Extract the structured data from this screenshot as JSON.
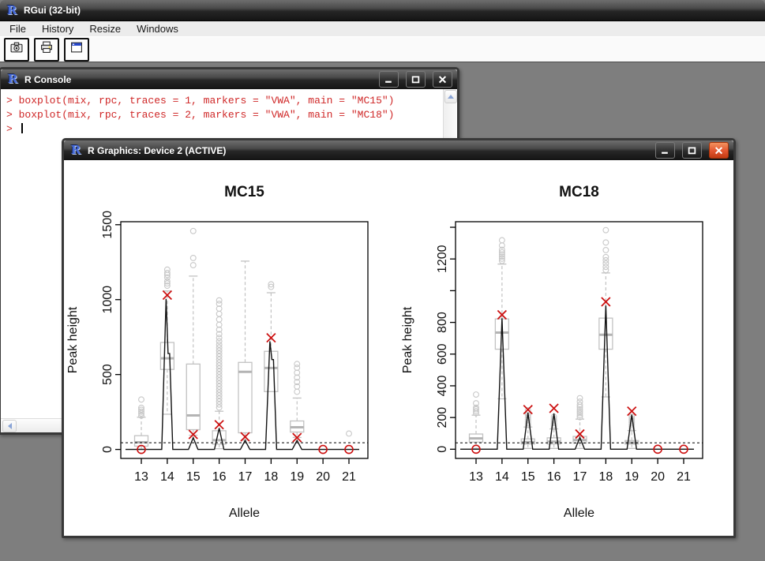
{
  "app": {
    "title": "RGui (32-bit)",
    "menu": [
      "File",
      "History",
      "Resize",
      "Windows"
    ],
    "toolbar_icons": [
      "camera-icon",
      "printer-icon",
      "window-icon"
    ]
  },
  "console": {
    "title": "R Console",
    "lines": [
      "> boxplot(mix, rpc, traces = 1, markers = \"VWA\", main = \"MC15\")",
      "> boxplot(mix, rpc, traces = 2, markers = \"VWA\", main = \"MC18\")",
      "> "
    ]
  },
  "graphics": {
    "title": "R Graphics: Device 2 (ACTIVE)"
  },
  "colors": {
    "mdi_background": "#7e7e7e",
    "titlebar_dark": "#141414",
    "close_button_red": "#e2552f",
    "console_input_text": "#cf2727",
    "box_gray": "#c2c2c2",
    "median_gray": "#b4b4b4",
    "outlier_gray": "#c8c8c8",
    "marker_red": "#cc1111",
    "trace_black": "#111111"
  },
  "chart_data": [
    {
      "type": "boxplot",
      "title": "MC15",
      "xlabel": "Allele",
      "ylabel": "Peak height",
      "categories": [
        "13",
        "14",
        "15",
        "16",
        "17",
        "18",
        "19",
        "20",
        "21"
      ],
      "ylim": [
        -60,
        1520
      ],
      "yticks": [
        {
          "v": 0,
          "label": "0"
        },
        {
          "v": 500,
          "label": "500"
        },
        {
          "v": 1000,
          "label": "1000"
        },
        {
          "v": 1500,
          "label": "1500"
        }
      ],
      "threshold_line": 45,
      "groups": [
        {
          "allele": "13",
          "box": {
            "q1": 22,
            "median": 48,
            "q3": 92,
            "wlo": 2,
            "whi": 215
          },
          "outliers": [
            225,
            240,
            252,
            265,
            278,
            333
          ],
          "x_marker": null,
          "zero_circle": true,
          "trace_peak": 0
        },
        {
          "allele": "14",
          "box": {
            "q1": 534,
            "median": 608,
            "q3": 714,
            "wlo": 235,
            "whi": 1058
          },
          "outliers": [
            1093,
            1108,
            1122,
            1148,
            1165,
            1178,
            1200
          ],
          "x_marker": 1030,
          "zero_circle": false,
          "trace_peak": 1005,
          "trace_peak2": 640
        },
        {
          "allele": "15",
          "box": {
            "q1": 132,
            "median": 227,
            "q3": 570,
            "wlo": 95,
            "whi": 1157
          },
          "outliers": [
            1230,
            1278,
            1458
          ],
          "x_marker": 100,
          "zero_circle": false,
          "trace_peak": 78
        },
        {
          "allele": "16",
          "box": {
            "q1": 35,
            "median": 62,
            "q3": 125,
            "wlo": 5,
            "whi": 255
          },
          "outliers": [
            280,
            300,
            320,
            340,
            360,
            380,
            400,
            420,
            440,
            460,
            480,
            500,
            520,
            540,
            560,
            580,
            600,
            620,
            640,
            660,
            680,
            700,
            722,
            745,
            770,
            800,
            832,
            868,
            905,
            940,
            972,
            995
          ],
          "x_marker": 165,
          "zero_circle": false,
          "trace_peak": 142
        },
        {
          "allele": "17",
          "box": {
            "q1": 111,
            "median": 518,
            "q3": 581,
            "wlo": 62,
            "whi": 1257
          },
          "outliers": [],
          "x_marker": 84,
          "zero_circle": false,
          "trace_peak": 60
        },
        {
          "allele": "18",
          "box": {
            "q1": 386,
            "median": 544,
            "q3": 655,
            "wlo": null,
            "whi": 1046
          },
          "outliers": [
            1085,
            1102
          ],
          "x_marker": 745,
          "zero_circle": false,
          "trace_peak": 722,
          "trace_peak2": 600
        },
        {
          "allele": "19",
          "box": {
            "q1": 116,
            "median": 148,
            "q3": 190,
            "wlo": 80,
            "whi": 343
          },
          "outliers": [
            385,
            420,
            450,
            480,
            512,
            545,
            570
          ],
          "x_marker": 79,
          "zero_circle": false,
          "trace_peak": 60
        },
        {
          "allele": "20",
          "box": null,
          "outliers": [],
          "x_marker": null,
          "zero_circle": true,
          "trace_peak": 0
        },
        {
          "allele": "21",
          "box": null,
          "outliers": [
            106
          ],
          "x_marker": null,
          "zero_circle": true,
          "trace_peak": 0
        }
      ]
    },
    {
      "type": "boxplot",
      "title": "MC18",
      "xlabel": "Allele",
      "ylabel": "Peak height",
      "categories": [
        "13",
        "14",
        "15",
        "16",
        "17",
        "18",
        "19",
        "20",
        "21"
      ],
      "ylim": [
        -58,
        1435
      ],
      "yticks": [
        {
          "v": 0,
          "label": "0"
        },
        {
          "v": 200,
          "label": "200"
        },
        {
          "v": 400,
          "label": "400"
        },
        {
          "v": 600,
          "label": "600"
        },
        {
          "v": 800,
          "label": "800"
        },
        {
          "v": 1000,
          "label": ""
        },
        {
          "v": 1200,
          "label": "1200"
        },
        {
          "v": 1400,
          "label": ""
        }
      ],
      "threshold_line": 40,
      "groups": [
        {
          "allele": "13",
          "box": {
            "q1": 45,
            "median": 68,
            "q3": 96,
            "wlo": 5,
            "whi": 215
          },
          "outliers": [
            228,
            240,
            252,
            262,
            290,
            345
          ],
          "x_marker": null,
          "zero_circle": true,
          "trace_peak": 0
        },
        {
          "allele": "14",
          "box": {
            "q1": 631,
            "median": 736,
            "q3": 822,
            "wlo": 318,
            "whi": 1168
          },
          "outliers": [
            1188,
            1202,
            1215,
            1228,
            1242,
            1258,
            1285,
            1318
          ],
          "x_marker": 848,
          "zero_circle": false,
          "trace_peak": 826
        },
        {
          "allele": "15",
          "box": {
            "q1": 33,
            "median": 45,
            "q3": 65,
            "wlo": 5,
            "whi": 140
          },
          "outliers": [
            152,
            165,
            176,
            188,
            200,
            215,
            230,
            246
          ],
          "x_marker": 250,
          "zero_circle": false,
          "trace_peak": 230
        },
        {
          "allele": "16",
          "box": {
            "q1": 33,
            "median": 48,
            "q3": 72,
            "wlo": 5,
            "whi": 128
          },
          "outliers": [
            140,
            152,
            165,
            178,
            190,
            205
          ],
          "x_marker": 258,
          "zero_circle": false,
          "trace_peak": 226
        },
        {
          "allele": "17",
          "box": {
            "q1": 38,
            "median": 58,
            "q3": 81,
            "wlo": 5,
            "whi": 190
          },
          "outliers": [
            202,
            215,
            228,
            240,
            252,
            266,
            280,
            300,
            322
          ],
          "x_marker": 96,
          "zero_circle": false,
          "trace_peak": 74
        },
        {
          "allele": "18",
          "box": {
            "q1": 631,
            "median": 722,
            "q3": 827,
            "wlo": 330,
            "whi": 1112
          },
          "outliers": [
            1130,
            1150,
            1172,
            1192,
            1212,
            1256,
            1304,
            1382
          ],
          "x_marker": 930,
          "zero_circle": false,
          "trace_peak": 906
        },
        {
          "allele": "19",
          "box": {
            "q1": 33,
            "median": 42,
            "q3": 55,
            "wlo": 5,
            "whi": 118
          },
          "outliers": [
            130,
            143,
            155,
            168,
            178,
            190,
            205
          ],
          "x_marker": 240,
          "zero_circle": false,
          "trace_peak": 218
        },
        {
          "allele": "20",
          "box": null,
          "outliers": [],
          "x_marker": null,
          "zero_circle": true,
          "trace_peak": 0
        },
        {
          "allele": "21",
          "box": null,
          "outliers": [],
          "x_marker": null,
          "zero_circle": true,
          "trace_peak": 0
        }
      ]
    }
  ]
}
